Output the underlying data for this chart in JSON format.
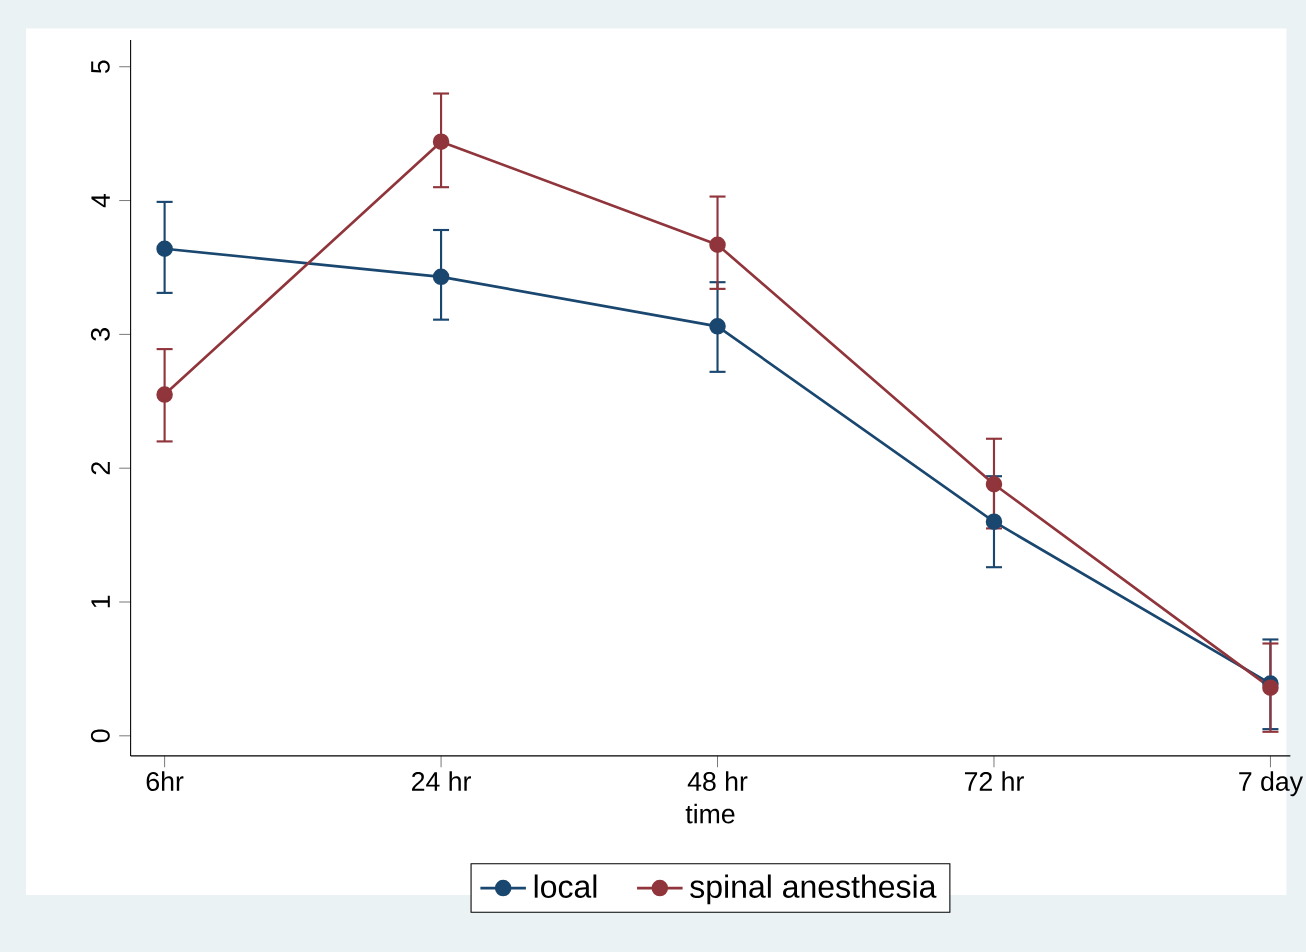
{
  "chart_data": {
    "type": "line",
    "xlabel": "time",
    "categories": [
      "6hr",
      "24 hr",
      "48 hr",
      "72 hr",
      "7 day"
    ],
    "series": [
      {
        "name": "local",
        "color": "#1a476f",
        "values": [
          3.64,
          3.43,
          3.06,
          1.6,
          0.39
        ],
        "errors": [
          [
            3.31,
            3.99
          ],
          [
            3.11,
            3.78
          ],
          [
            2.72,
            3.39
          ],
          [
            1.26,
            1.94
          ],
          [
            0.05,
            0.72
          ]
        ]
      },
      {
        "name": "spinal anesthesia",
        "color": "#90353b",
        "values": [
          2.55,
          4.44,
          3.67,
          1.88,
          0.36
        ],
        "errors": [
          [
            2.2,
            2.89
          ],
          [
            4.1,
            4.8
          ],
          [
            3.34,
            4.03
          ],
          [
            1.55,
            2.22
          ],
          [
            0.03,
            0.69
          ]
        ]
      }
    ],
    "ylim": [
      -0.15,
      5.2
    ],
    "yticks": [
      0,
      1,
      2,
      3,
      4,
      5
    ],
    "grid": false,
    "legend": "bottom",
    "marker": "circle",
    "line_style": "solid"
  }
}
